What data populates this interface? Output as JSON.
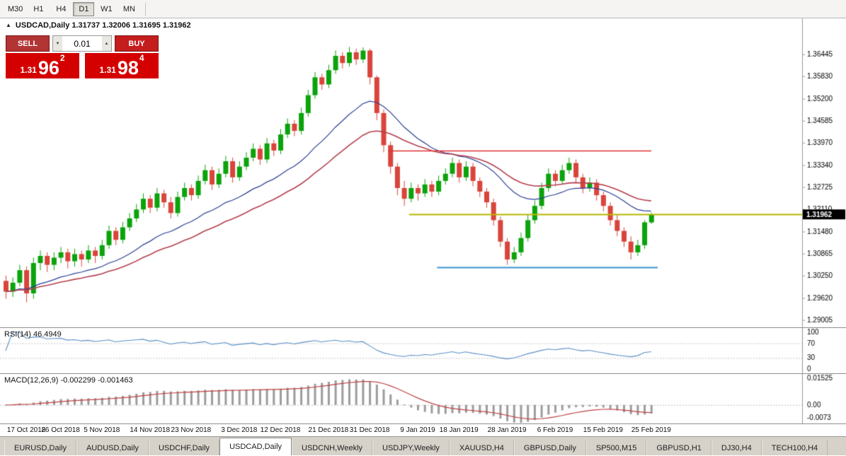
{
  "toolbar": {
    "timeframes": [
      "M30",
      "H1",
      "H4",
      "D1",
      "W1",
      "MN"
    ],
    "active": "D1"
  },
  "icons": {
    "one_click_collapse": "▲",
    "spin_up": "▲",
    "spin_down": "▼"
  },
  "chart": {
    "title_line": "USDCAD,Daily 1.31737 1.32006 1.31695 1.31962",
    "trade_panel": {
      "sell_label": "SELL",
      "buy_label": "BUY",
      "lot": "0.01",
      "sell_price": {
        "prefix": "1.31",
        "big": "96",
        "sup": "2"
      },
      "buy_price": {
        "prefix": "1.31",
        "big": "98",
        "sup": "4"
      }
    },
    "current_price_tag": "1.31962"
  },
  "rsi_panel": {
    "label": "RSI(14) 46.4949"
  },
  "macd_panel": {
    "label": "MACD(12,26,9) -0.002299 -0.001463"
  },
  "tabs": [
    "EURUSD,Daily",
    "AUDUSD,Daily",
    "USDCHF,Daily",
    "USDCAD,Daily",
    "USDCNH,Weekly",
    "USDJPY,Weekly",
    "XAUUSD,H4",
    "GBPUSD,Daily",
    "SP500,M15",
    "GBPUSD,H1",
    "DJ30,H4",
    "TECH100,H4"
  ],
  "active_tab": "USDCAD,Daily",
  "chart_data": {
    "type": "candlestick",
    "symbol": "USDCAD",
    "timeframe": "Daily",
    "ohlc_current": {
      "open": 1.31737,
      "high": 1.32006,
      "low": 1.31695,
      "close": 1.31962
    },
    "colors": {
      "up": "#0ba30b",
      "down": "#d9443b",
      "background": "#ffffff"
    },
    "y_axis": {
      "range": [
        1.288,
        1.3745
      ],
      "ticks": [
        1.36445,
        1.3583,
        1.352,
        1.34585,
        1.3397,
        1.3334,
        1.32725,
        1.3211,
        1.3148,
        1.30865,
        1.3025,
        1.2962,
        1.29005
      ]
    },
    "candles": [
      [
        1.301,
        1.3025,
        1.296,
        1.298
      ],
      [
        1.298,
        1.302,
        1.2965,
        1.3005
      ],
      [
        1.3005,
        1.3055,
        1.2995,
        1.304
      ],
      [
        1.304,
        1.305,
        1.295,
        1.2975
      ],
      [
        1.2975,
        1.3075,
        1.296,
        1.306
      ],
      [
        1.306,
        1.3095,
        1.304,
        1.308
      ],
      [
        1.308,
        1.309,
        1.3035,
        1.3055
      ],
      [
        1.3055,
        1.309,
        1.304,
        1.3075
      ],
      [
        1.3075,
        1.3105,
        1.306,
        1.309
      ],
      [
        1.309,
        1.31,
        1.3045,
        1.3065
      ],
      [
        1.3065,
        1.31,
        1.305,
        1.3085
      ],
      [
        1.3085,
        1.3095,
        1.305,
        1.307
      ],
      [
        1.307,
        1.311,
        1.306,
        1.3095
      ],
      [
        1.3095,
        1.3105,
        1.306,
        1.308
      ],
      [
        1.308,
        1.3125,
        1.307,
        1.311
      ],
      [
        1.311,
        1.3165,
        1.31,
        1.315
      ],
      [
        1.315,
        1.316,
        1.311,
        1.3125
      ],
      [
        1.3125,
        1.3175,
        1.3115,
        1.316
      ],
      [
        1.316,
        1.32,
        1.315,
        1.3185
      ],
      [
        1.3185,
        1.3225,
        1.3175,
        1.321
      ],
      [
        1.321,
        1.3255,
        1.32,
        1.324
      ],
      [
        1.324,
        1.325,
        1.32,
        1.3215
      ],
      [
        1.3215,
        1.327,
        1.3205,
        1.3255
      ],
      [
        1.3255,
        1.3265,
        1.3215,
        1.323
      ],
      [
        1.323,
        1.3245,
        1.3185,
        1.32
      ],
      [
        1.32,
        1.326,
        1.319,
        1.3245
      ],
      [
        1.3245,
        1.3285,
        1.3235,
        1.327
      ],
      [
        1.327,
        1.328,
        1.3235,
        1.325
      ],
      [
        1.325,
        1.3305,
        1.324,
        1.329
      ],
      [
        1.329,
        1.3335,
        1.328,
        1.332
      ],
      [
        1.332,
        1.333,
        1.3265,
        1.328
      ],
      [
        1.328,
        1.3325,
        1.327,
        1.331
      ],
      [
        1.331,
        1.336,
        1.33,
        1.3345
      ],
      [
        1.3345,
        1.3355,
        1.3285,
        1.33
      ],
      [
        1.33,
        1.3345,
        1.329,
        1.333
      ],
      [
        1.333,
        1.337,
        1.332,
        1.3355
      ],
      [
        1.3355,
        1.3395,
        1.3345,
        1.338
      ],
      [
        1.338,
        1.339,
        1.3335,
        1.335
      ],
      [
        1.335,
        1.341,
        1.334,
        1.3395
      ],
      [
        1.3395,
        1.3405,
        1.336,
        1.3375
      ],
      [
        1.3375,
        1.3435,
        1.3365,
        1.342
      ],
      [
        1.342,
        1.3465,
        1.341,
        1.345
      ],
      [
        1.345,
        1.346,
        1.3415,
        1.343
      ],
      [
        1.343,
        1.3495,
        1.342,
        1.348
      ],
      [
        1.348,
        1.3545,
        1.347,
        1.353
      ],
      [
        1.353,
        1.3595,
        1.352,
        1.358
      ],
      [
        1.358,
        1.359,
        1.3545,
        1.356
      ],
      [
        1.356,
        1.3615,
        1.355,
        1.36
      ],
      [
        1.36,
        1.3655,
        1.359,
        1.364
      ],
      [
        1.364,
        1.365,
        1.3605,
        1.362
      ],
      [
        1.362,
        1.3665,
        1.361,
        1.365
      ],
      [
        1.365,
        1.366,
        1.3615,
        1.363
      ],
      [
        1.363,
        1.3664,
        1.362,
        1.3655
      ],
      [
        1.3655,
        1.366,
        1.356,
        1.358
      ],
      [
        1.358,
        1.3585,
        1.346,
        1.348
      ],
      [
        1.348,
        1.349,
        1.337,
        1.339
      ],
      [
        1.339,
        1.34,
        1.331,
        1.333
      ],
      [
        1.333,
        1.334,
        1.325,
        1.327
      ],
      [
        1.327,
        1.329,
        1.322,
        1.324
      ],
      [
        1.324,
        1.3285,
        1.323,
        1.327
      ],
      [
        1.327,
        1.328,
        1.3235,
        1.3255
      ],
      [
        1.3255,
        1.3295,
        1.3245,
        1.328
      ],
      [
        1.328,
        1.329,
        1.3245,
        1.326
      ],
      [
        1.326,
        1.3305,
        1.325,
        1.329
      ],
      [
        1.329,
        1.3325,
        1.328,
        1.331
      ],
      [
        1.331,
        1.3355,
        1.33,
        1.334
      ],
      [
        1.334,
        1.335,
        1.3285,
        1.33
      ],
      [
        1.33,
        1.3345,
        1.329,
        1.333
      ],
      [
        1.333,
        1.334,
        1.3275,
        1.329
      ],
      [
        1.329,
        1.33,
        1.3245,
        1.326
      ],
      [
        1.326,
        1.327,
        1.3215,
        1.323
      ],
      [
        1.323,
        1.324,
        1.3165,
        1.318
      ],
      [
        1.318,
        1.319,
        1.3105,
        1.312
      ],
      [
        1.312,
        1.313,
        1.3055,
        1.307
      ],
      [
        1.307,
        1.3105,
        1.306,
        1.309
      ],
      [
        1.309,
        1.3145,
        1.308,
        1.313
      ],
      [
        1.313,
        1.3195,
        1.312,
        1.318
      ],
      [
        1.318,
        1.3235,
        1.317,
        1.322
      ],
      [
        1.322,
        1.3285,
        1.321,
        1.327
      ],
      [
        1.327,
        1.3325,
        1.326,
        1.331
      ],
      [
        1.331,
        1.332,
        1.3275,
        1.329
      ],
      [
        1.329,
        1.3335,
        1.328,
        1.332
      ],
      [
        1.332,
        1.3355,
        1.331,
        1.334
      ],
      [
        1.334,
        1.335,
        1.3285,
        1.33
      ],
      [
        1.33,
        1.331,
        1.3255,
        1.327
      ],
      [
        1.327,
        1.33,
        1.326,
        1.3285
      ],
      [
        1.3285,
        1.3295,
        1.3235,
        1.325
      ],
      [
        1.325,
        1.326,
        1.3205,
        1.322
      ],
      [
        1.322,
        1.323,
        1.3165,
        1.318
      ],
      [
        1.318,
        1.3195,
        1.3135,
        1.315
      ],
      [
        1.315,
        1.316,
        1.3105,
        1.312
      ],
      [
        1.312,
        1.3135,
        1.307,
        1.309
      ],
      [
        1.309,
        1.3125,
        1.308,
        1.311
      ],
      [
        1.311,
        1.318,
        1.31,
        1.3174
      ],
      [
        1.31737,
        1.32006,
        1.31695,
        1.31962
      ]
    ],
    "date_labels": [
      {
        "label": "17 Oct 2018",
        "i": 3
      },
      {
        "label": "26 Oct 2018",
        "i": 8
      },
      {
        "label": "5 Nov 2018",
        "i": 14
      },
      {
        "label": "14 Nov 2018",
        "i": 21
      },
      {
        "label": "23 Nov 2018",
        "i": 27
      },
      {
        "label": "3 Dec 2018",
        "i": 34
      },
      {
        "label": "12 Dec 2018",
        "i": 40
      },
      {
        "label": "21 Dec 2018",
        "i": 47
      },
      {
        "label": "31 Dec 2018",
        "i": 53
      },
      {
        "label": "9 Jan 2019",
        "i": 60
      },
      {
        "label": "18 Jan 2019",
        "i": 66
      },
      {
        "label": "28 Jan 2019",
        "i": 73
      },
      {
        "label": "6 Feb 2019",
        "i": 80
      },
      {
        "label": "15 Feb 2019",
        "i": 87
      },
      {
        "label": "25 Feb 2019",
        "i": 94
      }
    ],
    "overlays": {
      "moving_averages": [
        {
          "name": "fast",
          "period": 20,
          "color": "#2b3f96",
          "width": 1.2
        },
        {
          "name": "slow",
          "period": 34,
          "color": "#b4404e",
          "width": 1.6
        }
      ],
      "hlines": [
        {
          "name": "resistance-line",
          "price": 1.3375,
          "color": "#e03030",
          "x0": 0.484,
          "x1": 0.812,
          "width": 1.3
        },
        {
          "name": "current-price-line",
          "price": 1.31962,
          "color": "#b8b800",
          "x0": 0.51,
          "x1": 1.0,
          "width": 2
        },
        {
          "name": "support-line",
          "price": 1.3048,
          "color": "#3a8fd0",
          "x0": 0.545,
          "x1": 0.82,
          "width": 2
        }
      ]
    },
    "indicators": {
      "rsi": {
        "period": 14,
        "current": 46.4949,
        "color": "#5a8fc8",
        "ticks": [
          100,
          70,
          30,
          0
        ]
      },
      "macd": {
        "fast": 12,
        "slow": 26,
        "signal": 9,
        "macd_value": -0.002299,
        "signal_value": -0.001463,
        "hist_color": "#9c9c9c",
        "signal_color": "#c04040",
        "scale_peak": 0.0145,
        "ticks": [
          {
            "label": "0.01525",
            "value": 0.01525
          },
          {
            "label": "0.00",
            "value": 0
          },
          {
            "label": "-0.0073",
            "value": -0.0073
          }
        ]
      }
    }
  }
}
